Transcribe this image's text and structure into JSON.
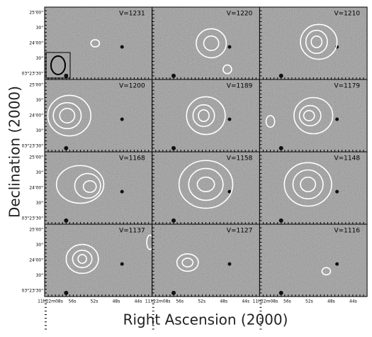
{
  "panels": [
    {
      "label": "V=1231"
    },
    {
      "label": "V=1220"
    },
    {
      "label": "V=1210"
    },
    {
      "label": "V=1200"
    },
    {
      "label": "V=1189"
    },
    {
      "label": "V=1179"
    },
    {
      "label": "V=1168"
    },
    {
      "label": "V=1158"
    },
    {
      "label": "V=1148"
    },
    {
      "label": "V=1137"
    },
    {
      "label": "V=1127"
    },
    {
      "label": "V=1116"
    }
  ],
  "y_axis_label": "Declination (2000)",
  "x_axis_label": "Right Ascension (2000)",
  "dec_ticks": [
    "25'00\"",
    "30\"",
    "24'00\"",
    "30\"",
    "03°23'30\""
  ],
  "ra_ticks": [
    "11h22m08s",
    "56s",
    "52s",
    "48s",
    "44s"
  ]
}
